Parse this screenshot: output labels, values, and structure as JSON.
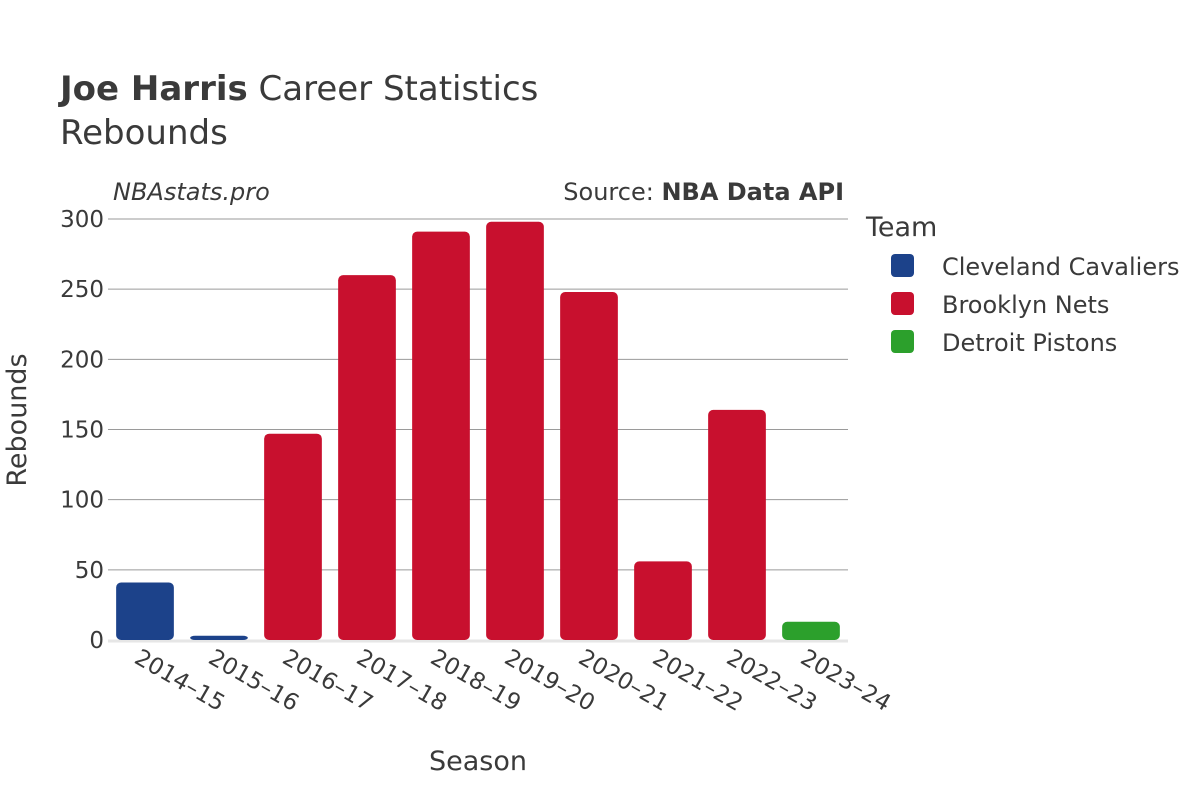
{
  "title": {
    "player": "Joe Harris",
    "rest": " Career Statistics",
    "subtitle": "Rebounds"
  },
  "credit": {
    "site": "NBAstats.pro",
    "source_prefix": "Source: ",
    "source_name": "NBA Data API"
  },
  "chart_data": {
    "type": "bar",
    "xlabel": "Season",
    "ylabel": "Rebounds",
    "ylim": [
      0,
      300
    ],
    "yticks": [
      0,
      50,
      100,
      150,
      200,
      250,
      300
    ],
    "grid": true,
    "legend": {
      "title": "Team",
      "placement": "right",
      "entries": [
        {
          "name": "Cleveland Cavaliers",
          "color": "#1c428a"
        },
        {
          "name": "Brooklyn Nets",
          "color": "#c8102e"
        },
        {
          "name": "Detroit Pistons",
          "color": "#2ca02c"
        }
      ]
    },
    "categories": [
      "2014–15",
      "2015–16",
      "2016–17",
      "2017–18",
      "2018–19",
      "2019–20",
      "2020–21",
      "2021–22",
      "2022–23",
      "2023–24"
    ],
    "values": [
      41,
      3,
      147,
      260,
      291,
      298,
      248,
      56,
      164,
      13
    ],
    "teams": [
      "Cleveland Cavaliers",
      "Cleveland Cavaliers",
      "Brooklyn Nets",
      "Brooklyn Nets",
      "Brooklyn Nets",
      "Brooklyn Nets",
      "Brooklyn Nets",
      "Brooklyn Nets",
      "Brooklyn Nets",
      "Detroit Pistons"
    ]
  }
}
